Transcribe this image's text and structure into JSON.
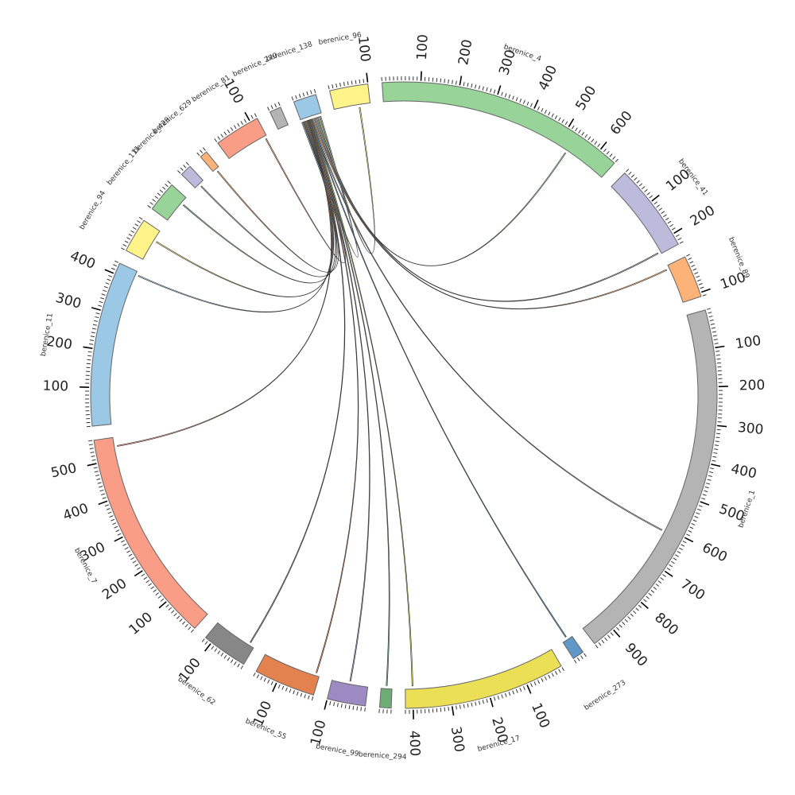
{
  "chart_data": {
    "type": "chord",
    "segments": [
      {
        "name": "berenice_4",
        "length": 650,
        "color": "#98d39a"
      },
      {
        "name": "berenice_41",
        "length": 230,
        "color": "#bcbbdc"
      },
      {
        "name": "berenice_89",
        "length": 110,
        "color": "#fdb378"
      },
      {
        "name": "berenice_1",
        "length": 960,
        "color": "#b4b4b4"
      },
      {
        "name": "berenice_273",
        "length": 30,
        "color": "#5f98c6"
      },
      {
        "name": "berenice_17",
        "length": 420,
        "color": "#ebe055"
      },
      {
        "name": "berenice_294",
        "length": 30,
        "color": "#6fad77"
      },
      {
        "name": "berenice_99",
        "length": 100,
        "color": "#9e8ac2"
      },
      {
        "name": "berenice_55",
        "length": 160,
        "color": "#e3824f"
      },
      {
        "name": "berenice_62",
        "length": 120,
        "color": "#878787"
      },
      {
        "name": "berenice_7",
        "length": 560,
        "color": "#fa9d86"
      },
      {
        "name": "berenice_11",
        "length": 430,
        "color": "#9ac8e5"
      },
      {
        "name": "berenice_94",
        "length": 90,
        "color": "#fff38a"
      },
      {
        "name": "berenice_111",
        "length": 80,
        "color": "#98d39a"
      },
      {
        "name": "berenice_429",
        "length": 30,
        "color": "#bcbbdc"
      },
      {
        "name": "berenice_629",
        "length": 20,
        "color": "#fdb378"
      },
      {
        "name": "berenice_81",
        "length": 120,
        "color": "#fa9d86"
      },
      {
        "name": "berenice_270",
        "length": 30,
        "color": "#b4b4b4"
      },
      {
        "name": "berenice_138",
        "length": 60,
        "color": "#9ac8e5"
      },
      {
        "name": "berenice_96",
        "length": 100,
        "color": "#fff38a"
      }
    ],
    "labels": {
      "berenice_4": "berenice_4",
      "berenice_41": "berenice_41",
      "berenice_89": "berenice_89",
      "berenice_1": "berenice_1",
      "berenice_273": "berenice_273",
      "berenice_17": "berenice_17",
      "berenice_294": "berenice_294",
      "berenice_99": "berenice_99",
      "berenice_55": "berenice_55",
      "berenice_62": "berenice_62",
      "berenice_7": "berenice_7",
      "berenice_11": "berenice_11",
      "berenice_94": "berenice_94",
      "berenice_111": "berenice_111",
      "berenice_429": "berenice_429",
      "berenice_629": "berenice_629",
      "berenice_81": "berenice_81",
      "berenice_270": "berenice_270",
      "berenice_138": "berenice_138",
      "berenice_96": "berenice_96"
    },
    "links": [
      {
        "source": "berenice_4",
        "source_pos": 530,
        "target": "berenice_138",
        "target_pos": 45,
        "color": "#98d39a"
      },
      {
        "source": "berenice_41",
        "source_pos": 225,
        "target": "berenice_138",
        "target_pos": 40,
        "color": "#bcbbdc"
      },
      {
        "source": "berenice_89",
        "source_pos": 10,
        "target": "berenice_138",
        "target_pos": 35,
        "color": "#fdb378"
      },
      {
        "source": "berenice_1",
        "source_pos": 610,
        "target": "berenice_138",
        "target_pos": 30,
        "color": "#b4b4b4"
      },
      {
        "source": "berenice_273",
        "source_pos": 15,
        "target": "berenice_138",
        "target_pos": 28,
        "color": "#5f98c6"
      },
      {
        "source": "berenice_17",
        "source_pos": 400,
        "target": "berenice_138",
        "target_pos": 26,
        "color": "#ebe055"
      },
      {
        "source": "berenice_294",
        "source_pos": 15,
        "target": "berenice_138",
        "target_pos": 24,
        "color": "#6fad77"
      },
      {
        "source": "berenice_99",
        "source_pos": 50,
        "target": "berenice_138",
        "target_pos": 22,
        "color": "#9e8ac2"
      },
      {
        "source": "berenice_55",
        "source_pos": 10,
        "target": "berenice_138",
        "target_pos": 20,
        "color": "#e3824f"
      },
      {
        "source": "berenice_62",
        "source_pos": 15,
        "target": "berenice_138",
        "target_pos": 18,
        "color": "#878787"
      },
      {
        "source": "berenice_7",
        "source_pos": 535,
        "target": "berenice_138",
        "target_pos": 16,
        "color": "#fa9d86"
      },
      {
        "source": "berenice_11",
        "source_pos": 420,
        "target": "berenice_138",
        "target_pos": 14,
        "color": "#9ac8e5"
      },
      {
        "source": "berenice_94",
        "source_pos": 60,
        "target": "berenice_138",
        "target_pos": 12,
        "color": "#fff38a"
      },
      {
        "source": "berenice_111",
        "source_pos": 60,
        "target": "berenice_138",
        "target_pos": 10,
        "color": "#98d39a"
      },
      {
        "source": "berenice_429",
        "source_pos": 15,
        "target": "berenice_138",
        "target_pos": 8,
        "color": "#bcbbdc"
      },
      {
        "source": "berenice_629",
        "source_pos": 10,
        "target": "berenice_138",
        "target_pos": 6,
        "color": "#fdb378"
      },
      {
        "source": "berenice_81",
        "source_pos": 115,
        "target": "berenice_138",
        "target_pos": 4,
        "color": "#fa9d86"
      },
      {
        "source": "berenice_96",
        "source_pos": 70,
        "target": "berenice_138",
        "target_pos": 50,
        "color": "#fff38a"
      },
      {
        "source": "berenice_138",
        "source_pos": 55,
        "target": "berenice_138",
        "target_pos": 2,
        "color": "#9ac8e5"
      }
    ],
    "major_tick_step": 100,
    "minor_tick_step": 10,
    "grid": false
  }
}
